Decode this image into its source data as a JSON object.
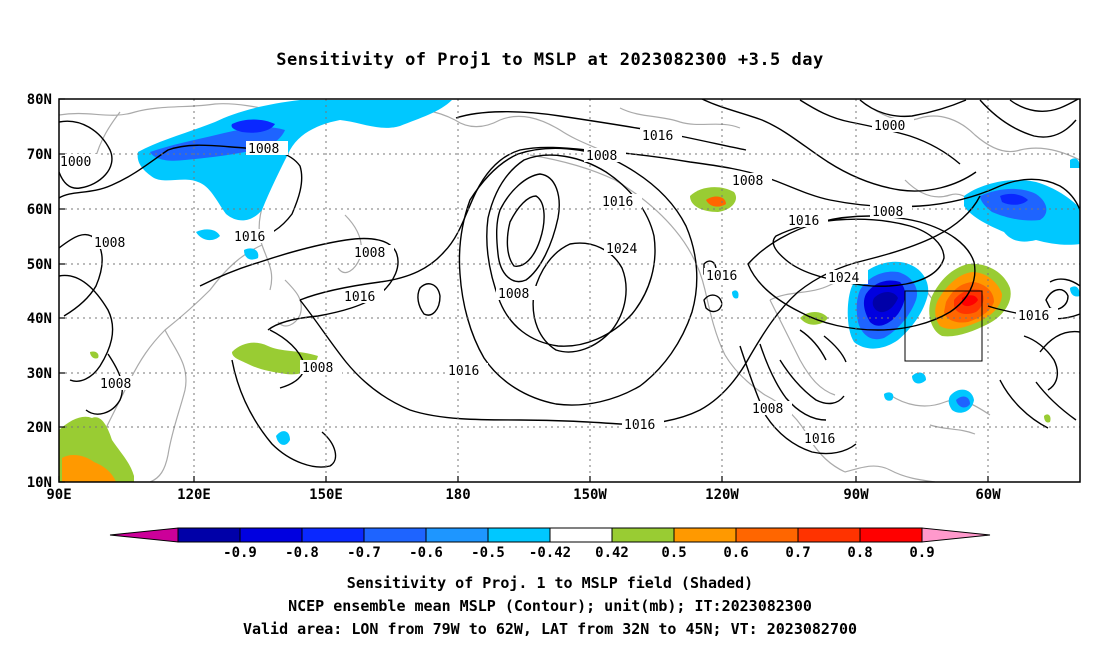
{
  "title": "Sensitivity of Proj1 to MSLP at 2023082300 +3.5 day",
  "captions": {
    "line1": "Sensitivity of Proj. 1 to MSLP field (Shaded)",
    "line2": "NCEP ensemble mean MSLP (Contour); unit(mb); IT:2023082300",
    "line3": "Valid area: LON from 79W to 62W, LAT from 32N to 45N; VT: 2023082700"
  },
  "axes": {
    "lat_labels": [
      "80N",
      "70N",
      "60N",
      "50N",
      "40N",
      "30N",
      "20N",
      "10N"
    ],
    "lon_labels": [
      "90E",
      "120E",
      "150E",
      "180",
      "150W",
      "120W",
      "90W",
      "60W"
    ]
  },
  "colorbar": {
    "labels": [
      "-0.9",
      "-0.8",
      "-0.7",
      "-0.6",
      "-0.5",
      "-0.42",
      "0.42",
      "0.5",
      "0.6",
      "0.7",
      "0.8",
      "0.9"
    ],
    "left_arrow_color": "#cc0099",
    "right_arrow_color": "#ff99cc",
    "bins": [
      "#0000a8",
      "#0000e0",
      "#0a28ff",
      "#1e64ff",
      "#1e96ff",
      "#00c8ff",
      "#ffffff",
      "#99cc33",
      "#ff9900",
      "#ff6600",
      "#ff3300",
      "#ff0000"
    ]
  },
  "contour_labels": [
    "1000",
    "1008",
    "1016",
    "1008",
    "1008",
    "1016",
    "1008",
    "1008",
    "1016",
    "1016",
    "1008",
    "1008",
    "1016",
    "1024",
    "1016",
    "1016",
    "1008",
    "1016",
    "1016",
    "1008",
    "1000",
    "1008",
    "1024",
    "1016"
  ],
  "valid_area": {
    "lon_min": -79,
    "lon_max": -62,
    "lat_min": 32,
    "lat_max": 45
  }
}
